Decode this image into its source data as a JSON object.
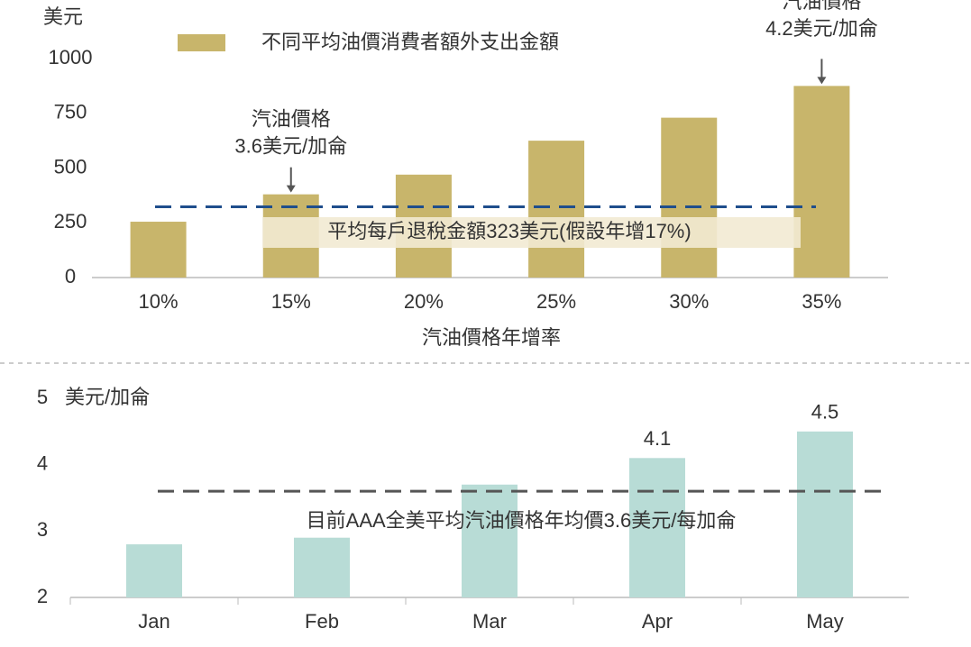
{
  "chart_data": [
    {
      "type": "bar",
      "y_label": "美元",
      "x_label": "汽油價格年增率",
      "categories": [
        "10%",
        "15%",
        "20%",
        "25%",
        "30%",
        "35%"
      ],
      "series": [
        {
          "name": "不同平均油價消費者額外支出金額",
          "color": "#c8b56b",
          "values": [
            255,
            380,
            470,
            625,
            730,
            875
          ]
        }
      ],
      "ylim": [
        0,
        1000
      ],
      "yticks": [
        0,
        250,
        500,
        750,
        1000
      ],
      "reference_line": {
        "value": 323,
        "label": "平均每戶退稅金額323美元(假設年增17%)",
        "color": "#1f4e8c"
      },
      "annotations": [
        {
          "lines": [
            "汽油價格",
            "3.6美元/加侖"
          ]
        },
        {
          "lines": [
            "汽油價格",
            "4.2美元/加侖"
          ]
        }
      ]
    },
    {
      "type": "bar",
      "y_label": "美元/加侖",
      "categories": [
        "Jan",
        "Feb",
        "Mar",
        "Apr",
        "May"
      ],
      "series": [
        {
          "color": "#b8dcd6",
          "values": [
            2.8,
            2.9,
            3.7,
            4.1,
            4.5
          ]
        }
      ],
      "show_value_labels": [
        false,
        false,
        false,
        true,
        true
      ],
      "ylim": [
        2,
        5
      ],
      "yticks": [
        2,
        3,
        4,
        5
      ],
      "reference_line": {
        "value": 3.6,
        "label": "目前AAA全美平均汽油價格年均價3.6美元/每加侖",
        "color": "#555555"
      }
    }
  ]
}
